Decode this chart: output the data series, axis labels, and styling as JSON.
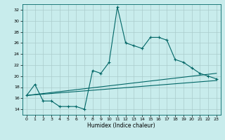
{
  "title": "",
  "xlabel": "Humidex (Indice chaleur)",
  "background_color": "#c8ecec",
  "grid_color": "#aacccc",
  "line_color": "#006666",
  "xlim": [
    -0.5,
    23.5
  ],
  "ylim": [
    13,
    33
  ],
  "xticks": [
    0,
    1,
    2,
    3,
    4,
    5,
    6,
    7,
    8,
    9,
    10,
    11,
    12,
    13,
    14,
    15,
    16,
    17,
    18,
    19,
    20,
    21,
    22,
    23
  ],
  "yticks": [
    14,
    16,
    18,
    20,
    22,
    24,
    26,
    28,
    30,
    32
  ],
  "line1_x": [
    0,
    1,
    2,
    3,
    4,
    5,
    6,
    7,
    8,
    9,
    10,
    11,
    12,
    13,
    14,
    15,
    16,
    17,
    18,
    19,
    20,
    21,
    22,
    23
  ],
  "line1_y": [
    16.5,
    18.5,
    15.5,
    15.5,
    14.5,
    14.5,
    14.5,
    14.0,
    21.0,
    20.5,
    22.5,
    32.5,
    26.0,
    25.5,
    25.0,
    27.0,
    27.0,
    26.5,
    23.0,
    22.5,
    21.5,
    20.5,
    20.0,
    19.5
  ],
  "line2_x": [
    0,
    23
  ],
  "line2_y": [
    16.5,
    20.5
  ],
  "line3_x": [
    0,
    23
  ],
  "line3_y": [
    16.5,
    19.2
  ]
}
